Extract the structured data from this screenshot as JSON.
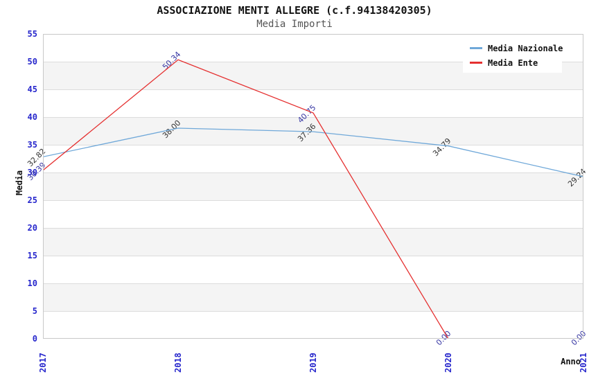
{
  "chart_data": {
    "type": "line",
    "title": "ASSOCIAZIONE MENTI ALLEGRE (c.f.94138420305)",
    "subtitle": "Media Importi",
    "xlabel": "Anno",
    "ylabel": "Media",
    "categories": [
      "2017",
      "2018",
      "2019",
      "2020",
      "2021"
    ],
    "series": [
      {
        "name": "Media Nazionale",
        "values": [
          32.82,
          38.0,
          37.36,
          34.79,
          29.24
        ],
        "color": "#6fa8d9",
        "label_color": "#333333"
      },
      {
        "name": "Media Ente",
        "values": [
          30.39,
          50.34,
          40.75,
          0.0,
          0.0
        ],
        "color": "#e53030",
        "label_color": "#3636a3"
      }
    ],
    "ylim": [
      0,
      55
    ],
    "y_ticks": [
      0,
      5,
      10,
      15,
      20,
      25,
      30,
      35,
      40,
      45,
      50,
      55
    ],
    "value_label_decimals": 2,
    "grid": "horizontal-bands",
    "legend_position": "top-right"
  },
  "style": {
    "tick_color": "#2626cc",
    "grid_line_color": "#dcdcdc",
    "band_color": "#f4f4f4",
    "axis_border_color": "#c8c8c8",
    "title_color": "#111111",
    "subtitle_color": "#555555"
  }
}
